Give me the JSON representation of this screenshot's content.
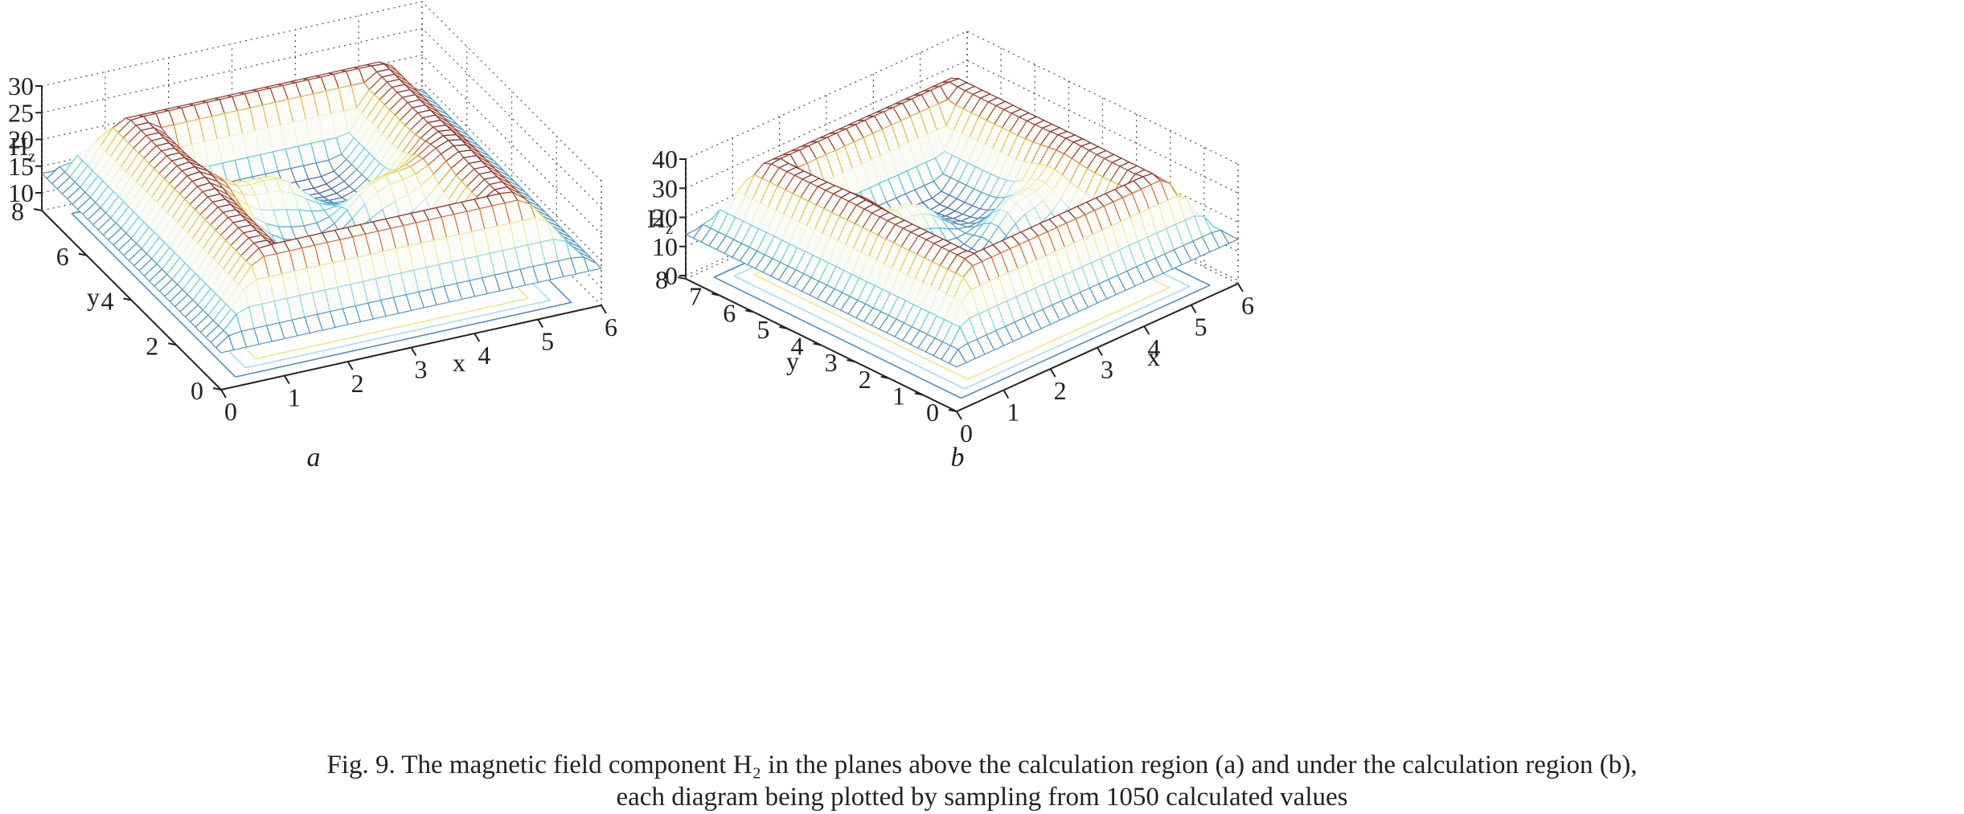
{
  "caption": {
    "line1": "Fig. 9. The magnetic field component H₂ in the planes above the calculation region (a) and under the calculation region (b),",
    "line2": "each diagram being plotted by sampling from 1050 calculated values"
  },
  "chart_data": [
    {
      "type": "surface",
      "panel_label": "a",
      "zlabel": "H",
      "zlabel_sub": "z",
      "xlabel": "x",
      "ylabel": "y",
      "xlim": [
        0,
        6
      ],
      "ylim": [
        0,
        8
      ],
      "zlim": [
        10,
        30
      ],
      "x_ticks": [
        "0",
        "1",
        "2",
        "3",
        "4",
        "5",
        "6"
      ],
      "y_ticks": [
        "0",
        "2",
        "4",
        "6",
        "8"
      ],
      "z_ticks": [
        "10",
        "15",
        "20",
        "25",
        "30"
      ],
      "grid": true,
      "grid_size": [
        30,
        35
      ],
      "model": {
        "base": 12,
        "rim_height": 14,
        "bump_height": 9,
        "bumps": [
          [
            2.4,
            4.4
          ],
          [
            3.7,
            3.4
          ]
        ]
      }
    },
    {
      "type": "surface",
      "panel_label": "b",
      "zlabel": "H",
      "zlabel_sub": "z",
      "xlabel": "x",
      "ylabel": "y",
      "xlim": [
        0,
        6
      ],
      "ylim": [
        0,
        8
      ],
      "zlim": [
        0,
        40
      ],
      "x_ticks": [
        "0",
        "1",
        "2",
        "3",
        "4",
        "5",
        "6"
      ],
      "y_ticks": [
        "0",
        "1",
        "2",
        "3",
        "4",
        "5",
        "6",
        "7",
        "8"
      ],
      "z_ticks": [
        "0",
        "10",
        "20",
        "30",
        "40"
      ],
      "grid": true,
      "grid_size": [
        30,
        35
      ],
      "model": {
        "base": 11,
        "rim_height": 27,
        "bump_height": 14,
        "bumps": [
          [
            2.4,
            4.6
          ],
          [
            3.6,
            3.3
          ]
        ]
      }
    }
  ]
}
